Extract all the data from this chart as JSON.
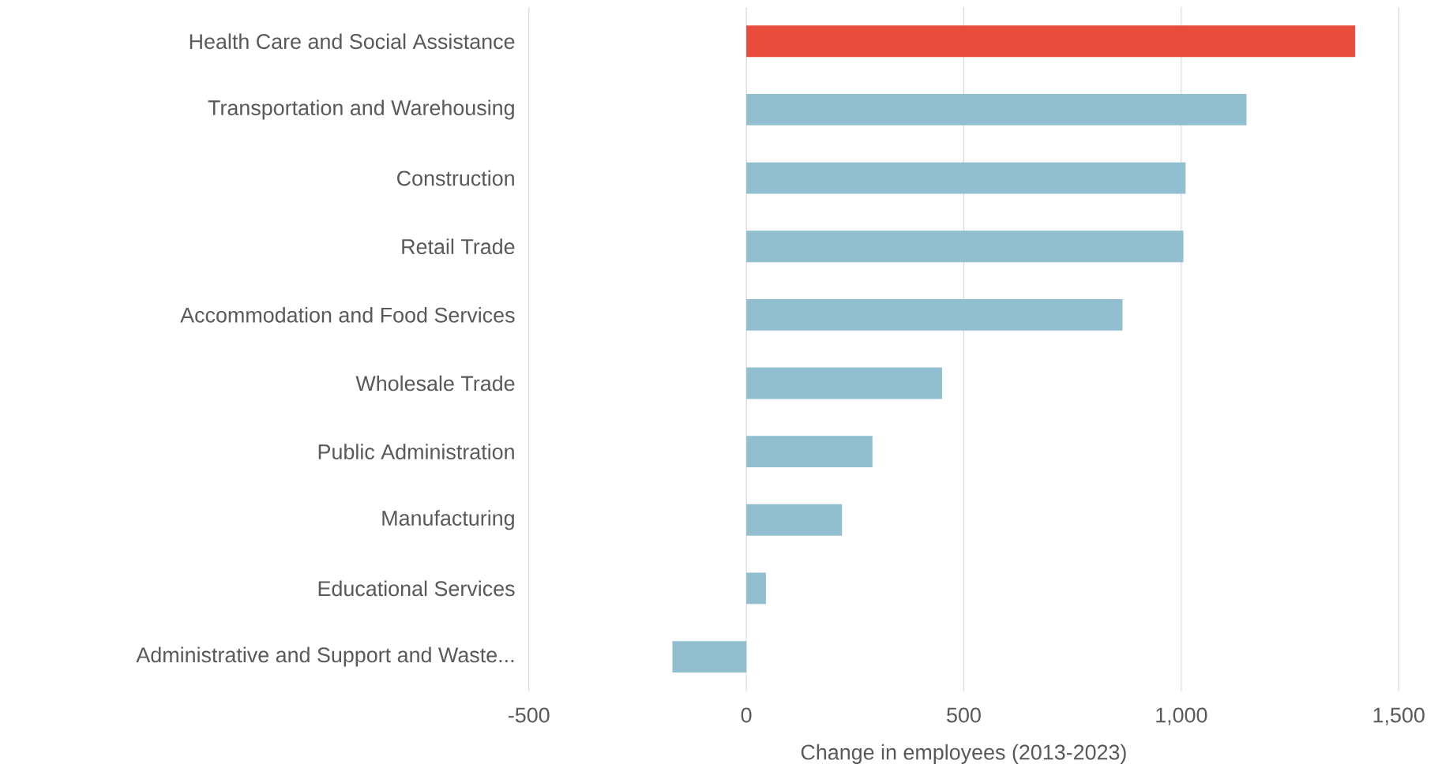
{
  "chart_data": {
    "type": "bar",
    "orientation": "horizontal",
    "xlabel": "Change in employees (2013-2023)",
    "categories": [
      "Health Care and Social Assistance",
      "Transportation and Warehousing",
      "Construction",
      "Retail Trade",
      "Accommodation and Food Services",
      "Wholesale Trade",
      "Public Administration",
      "Manufacturing",
      "Educational Services",
      "Administrative and Support and Waste..."
    ],
    "values": [
      1400,
      1150,
      1010,
      1005,
      865,
      450,
      290,
      220,
      45,
      -170
    ],
    "colors": [
      "#e84c3d",
      "#92bfd0",
      "#92bfd0",
      "#92bfd0",
      "#92bfd0",
      "#92bfd0",
      "#92bfd0",
      "#92bfd0",
      "#92bfd0",
      "#92bfd0"
    ],
    "xlim": [
      -500,
      1500
    ],
    "xticks": [
      {
        "value": -500,
        "label": "-500"
      },
      {
        "value": 0,
        "label": "0"
      },
      {
        "value": 500,
        "label": "500"
      },
      {
        "value": 1000,
        "label": "1,000"
      },
      {
        "value": 1500,
        "label": "1,500"
      }
    ],
    "grid": "x"
  }
}
